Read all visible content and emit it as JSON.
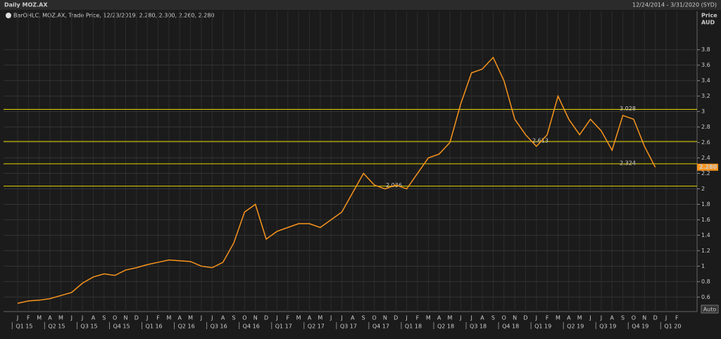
{
  "chart_data": {
    "type": "line",
    "title": "Daily MOZ.AX",
    "date_range": "12/24/2014 - 3/31/2020 (SYD)",
    "legend_text": "BarOHLC, MOZ.AX, Trade Price, 12/23/2019, 2.280, 2.300, 2.260, 2.280",
    "y_axis_label": [
      "Price",
      "AUD"
    ],
    "auto_button": "Auto",
    "categories": [
      "J",
      "F",
      "M",
      "A",
      "M",
      "J",
      "J",
      "A",
      "S",
      "O",
      "N",
      "D",
      "J",
      "F",
      "M",
      "A",
      "M",
      "J",
      "J",
      "A",
      "S",
      "O",
      "N",
      "D",
      "J",
      "F",
      "M",
      "A",
      "M",
      "J",
      "J",
      "A",
      "S",
      "O",
      "N",
      "D",
      "J",
      "F",
      "M",
      "A",
      "M",
      "J",
      "J",
      "A",
      "S",
      "O",
      "N",
      "D",
      "J",
      "F",
      "M",
      "A",
      "M",
      "J",
      "J",
      "A",
      "S",
      "O",
      "N",
      "D",
      "J",
      "F"
    ],
    "quarters": [
      "Q1 15",
      "Q2 15",
      "Q3 15",
      "Q4 15",
      "Q1 16",
      "Q2 16",
      "Q3 16",
      "Q4 16",
      "Q1 17",
      "Q2 17",
      "Q3 17",
      "Q4 17",
      "Q1 18",
      "Q2 18",
      "Q3 18",
      "Q4 18",
      "Q1 19",
      "Q2 19",
      "Q3 19",
      "Q4 19",
      "Q1 20"
    ],
    "series": [
      {
        "name": "MOZ.AX",
        "color": "#f7941d",
        "values": [
          0.52,
          0.55,
          0.56,
          0.58,
          0.62,
          0.66,
          0.78,
          0.86,
          0.9,
          0.88,
          0.95,
          0.98,
          1.02,
          1.05,
          1.08,
          1.07,
          1.06,
          1.0,
          0.98,
          1.05,
          1.3,
          1.7,
          1.8,
          1.35,
          1.45,
          1.5,
          1.55,
          1.55,
          1.5,
          1.6,
          1.7,
          1.95,
          2.2,
          2.05,
          2.0,
          2.05,
          2.0,
          2.2,
          2.4,
          2.45,
          2.6,
          3.1,
          3.5,
          3.55,
          3.7,
          3.4,
          2.9,
          2.7,
          2.55,
          2.7,
          3.2,
          2.9,
          2.7,
          2.9,
          2.75,
          2.5,
          2.95,
          2.9,
          2.55,
          2.28,
          null,
          null
        ]
      }
    ],
    "levels": [
      3.028,
      2.613,
      2.324,
      2.036
    ],
    "level_color": "#e5d200",
    "last_price": {
      "value": 2.28,
      "label": "2.280"
    },
    "ylim": [
      0.44,
      4.17
    ],
    "yticks": [
      {
        "value": 0.6,
        "label": "0.6"
      },
      {
        "value": 0.8,
        "label": "0.8"
      },
      1,
      {
        "value": 1.2,
        "label": "1.2"
      },
      {
        "value": 1.4,
        "label": "1.4"
      },
      {
        "value": 1.6,
        "label": "1.6"
      },
      {
        "value": 1.8,
        "label": "1.8"
      },
      2,
      {
        "value": 2.2,
        "label": "2.2"
      },
      {
        "value": 2.4,
        "label": "2.4"
      },
      {
        "value": 2.6,
        "label": "2.6"
      },
      {
        "value": 2.8,
        "label": "2.8"
      },
      3,
      {
        "value": 3.2,
        "label": "3.2"
      },
      {
        "value": 3.4,
        "label": "3.4"
      },
      {
        "value": 3.6,
        "label": "3.6"
      },
      {
        "value": 3.8,
        "label": "3.8"
      }
    ],
    "grid": true
  }
}
